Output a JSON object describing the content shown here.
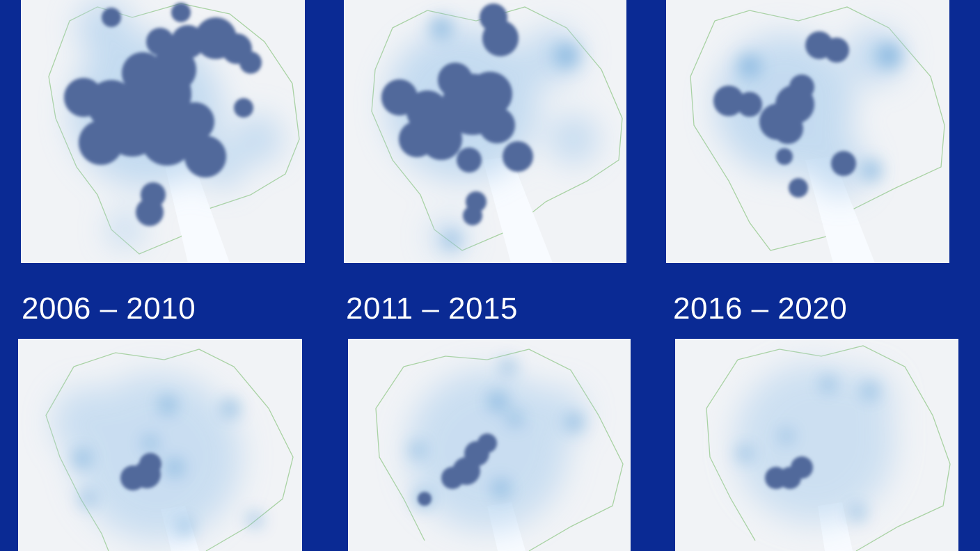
{
  "periods": [
    {
      "label": "2006 – 2010"
    },
    {
      "label": "2011 – 2015"
    },
    {
      "label": "2016 – 2020"
    }
  ],
  "colors": {
    "background": "#0a2a94",
    "panel": "#f1f3f6",
    "hotspot": "#4f6a9c",
    "density_light": "#b9d5ef",
    "boundary": "#9fcf9a",
    "road": "#f7fbff"
  }
}
